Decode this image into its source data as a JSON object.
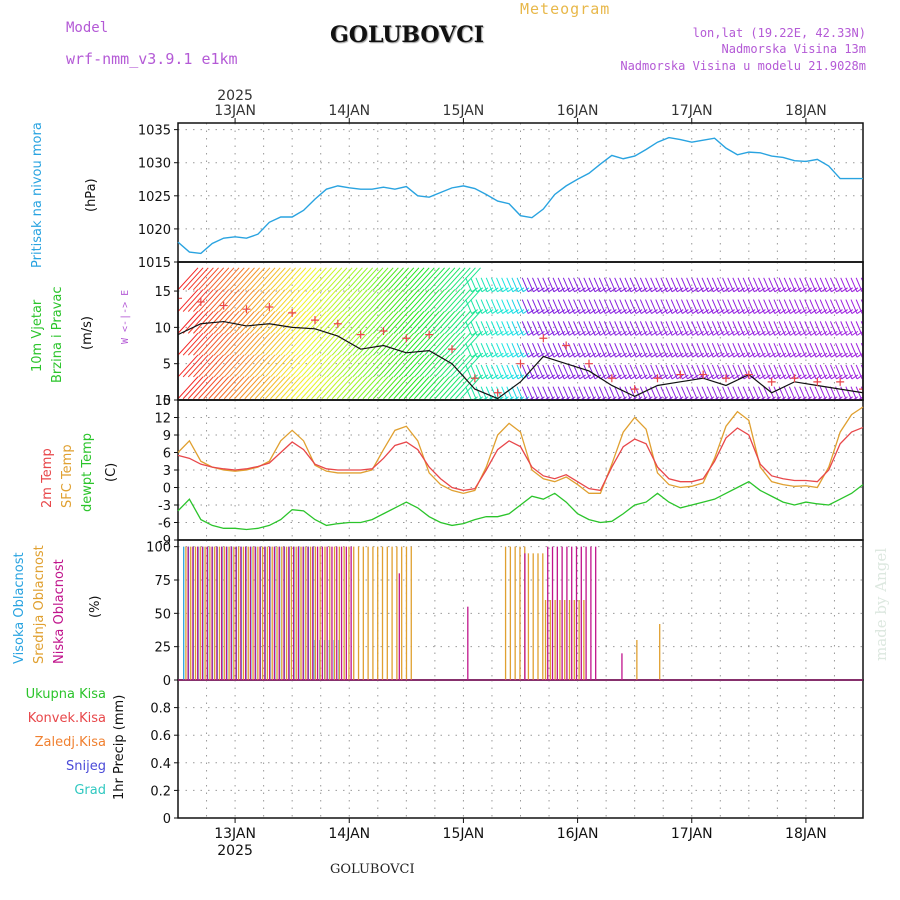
{
  "header": {
    "model_label": "Model",
    "model_name": "wrf-nmm_v3.9.1 e1km",
    "station": "GOLUBOVCI",
    "app_title": "Meteogram",
    "coords": "lon,lat (19.22E, 42.33N)",
    "altitude": "Nadmorska Visina 13m",
    "altitude_model": "Nadmorska Visina u modelu 21.9028m",
    "year": "2025",
    "bottom_station": "GOLUBOVCI",
    "watermark": "made by Angel"
  },
  "colors": {
    "pressure": "#29a3e0",
    "temp2m": "#e8474a",
    "sfc": "#e0a030",
    "dewpt": "#2bc42b",
    "high_cloud": "#29a3e0",
    "mid_cloud": "#e0a030",
    "low_cloud": "#c0148c",
    "label_purple": "#b45ad6"
  },
  "chart_data": [
    {
      "type": "line",
      "name": "pressure",
      "ylabel_text": "Pritisak na nivou mora",
      "unit": "(hPa)",
      "ylim": [
        1015,
        1036
      ],
      "yticks": [
        1015,
        1020,
        1025,
        1030,
        1035
      ],
      "x_days": [
        12.5,
        13,
        14,
        15,
        16,
        17,
        18,
        18.5
      ],
      "x_tick_labels": [
        "13JAN",
        "14JAN",
        "15JAN",
        "16JAN",
        "17JAN",
        "18JAN"
      ],
      "x_tick_days": [
        13,
        14,
        15,
        16,
        17,
        18
      ],
      "x": [
        12.5,
        12.6,
        12.7,
        12.8,
        12.9,
        13.0,
        13.1,
        13.2,
        13.3,
        13.4,
        13.5,
        13.6,
        13.7,
        13.8,
        13.9,
        14.0,
        14.1,
        14.2,
        14.3,
        14.4,
        14.5,
        14.6,
        14.7,
        14.8,
        14.9,
        15.0,
        15.1,
        15.2,
        15.3,
        15.4,
        15.5,
        15.6,
        15.7,
        15.8,
        15.9,
        16.0,
        16.1,
        16.2,
        16.3,
        16.4,
        16.5,
        16.6,
        16.7,
        16.8,
        16.9,
        17.0,
        17.1,
        17.2,
        17.3,
        17.4,
        17.5,
        17.6,
        17.7,
        17.8,
        17.9,
        18.0,
        18.1,
        18.2,
        18.3,
        18.4,
        18.5
      ],
      "y": [
        1018.0,
        1016.5,
        1016.3,
        1017.8,
        1018.6,
        1018.8,
        1018.6,
        1019.2,
        1021.0,
        1021.8,
        1021.8,
        1022.8,
        1024.5,
        1026.0,
        1026.5,
        1026.2,
        1026.0,
        1026.0,
        1026.3,
        1026.0,
        1026.4,
        1025.0,
        1024.8,
        1025.5,
        1026.2,
        1026.5,
        1026.1,
        1025.2,
        1024.2,
        1023.8,
        1022.0,
        1021.7,
        1023.0,
        1025.2,
        1026.5,
        1027.5,
        1028.4,
        1029.8,
        1031.1,
        1030.6,
        1031.0,
        1032.0,
        1033.1,
        1033.8,
        1033.5,
        1033.1,
        1033.4,
        1033.7,
        1032.2,
        1031.2,
        1031.6,
        1031.5,
        1031.0,
        1030.8,
        1030.3,
        1030.2,
        1030.5,
        1029.5,
        1027.6,
        1027.6,
        1027.6
      ]
    },
    {
      "type": "barbs",
      "name": "wind",
      "ylabel_text": "10m Vjetar",
      "ylabel_text2": "Brzina i Pravac",
      "unit": "(m/s)",
      "compass": "W <-|-> E",
      "ylim": [
        0,
        19
      ],
      "yticks": [
        0,
        5,
        10,
        15
      ],
      "x": [
        12.5,
        12.7,
        12.9,
        13.1,
        13.3,
        13.5,
        13.7,
        13.9,
        14.1,
        14.3,
        14.5,
        14.7,
        14.9,
        15.1,
        15.3,
        15.5,
        15.7,
        15.9,
        16.1,
        16.3,
        16.5,
        16.7,
        16.9,
        17.1,
        17.3,
        17.5,
        17.7,
        17.9,
        18.1,
        18.3,
        18.5
      ],
      "speed": [
        9.0,
        10.5,
        10.8,
        10.2,
        10.5,
        10.0,
        9.8,
        8.8,
        7.0,
        7.5,
        6.5,
        6.8,
        5.0,
        1.5,
        0.2,
        2.5,
        6.0,
        5.0,
        4.0,
        2.0,
        0.5,
        2.0,
        2.5,
        3.0,
        2.0,
        3.5,
        1.0,
        2.5,
        2.0,
        1.5,
        1.0
      ],
      "gust": [
        14.0,
        13.5,
        13.0,
        12.5,
        12.8,
        12.0,
        11.0,
        10.5,
        9.0,
        9.5,
        8.5,
        9.0,
        7.0,
        3.0,
        1.0,
        5.0,
        8.5,
        7.5,
        5.0,
        3.0,
        1.5,
        3.0,
        3.5,
        3.5,
        3.0,
        3.5,
        2.5,
        3.0,
        2.5,
        2.5,
        1.5
      ]
    },
    {
      "type": "line",
      "name": "temperature",
      "ylabel_text": "2m Temp",
      "ylabel_text2": "SFC Temp",
      "ylabel_text3": "dewpt Temp",
      "unit": "(C)",
      "ylim": [
        -9,
        15
      ],
      "yticks": [
        -9,
        -6,
        -3,
        0,
        3,
        6,
        9,
        12,
        15
      ],
      "x": [
        12.5,
        12.6,
        12.7,
        12.8,
        12.9,
        13.0,
        13.1,
        13.2,
        13.3,
        13.4,
        13.5,
        13.6,
        13.7,
        13.8,
        13.9,
        14.0,
        14.1,
        14.2,
        14.3,
        14.4,
        14.5,
        14.6,
        14.7,
        14.8,
        14.9,
        15.0,
        15.1,
        15.2,
        15.3,
        15.4,
        15.5,
        15.6,
        15.7,
        15.8,
        15.9,
        16.0,
        16.1,
        16.2,
        16.3,
        16.4,
        16.5,
        16.6,
        16.7,
        16.8,
        16.9,
        17.0,
        17.1,
        17.2,
        17.3,
        17.4,
        17.5,
        17.6,
        17.7,
        17.8,
        17.9,
        18.0,
        18.1,
        18.2,
        18.3,
        18.4,
        18.5
      ],
      "series": [
        {
          "name": "2m Temp",
          "values": [
            5.5,
            5.0,
            4.0,
            3.5,
            3.2,
            3.0,
            3.2,
            3.6,
            4.2,
            6.0,
            7.8,
            6.5,
            4.0,
            3.2,
            3.0,
            3.0,
            3.0,
            3.2,
            5.0,
            7.2,
            7.8,
            6.5,
            3.5,
            1.5,
            0.0,
            -0.5,
            -0.2,
            3.0,
            6.5,
            8.0,
            7.0,
            3.5,
            2.0,
            1.5,
            2.2,
            1.0,
            -0.2,
            -0.5,
            3.5,
            7.0,
            8.3,
            7.5,
            3.5,
            1.5,
            1.0,
            1.0,
            1.5,
            4.5,
            8.5,
            10.2,
            9.0,
            4.0,
            2.0,
            1.5,
            1.2,
            1.2,
            1.0,
            3.0,
            7.5,
            9.5,
            10.3
          ]
        },
        {
          "name": "SFC Temp",
          "values": [
            6.0,
            8.0,
            4.5,
            3.5,
            3.0,
            2.8,
            3.0,
            3.5,
            4.5,
            8.0,
            9.8,
            8.0,
            3.8,
            2.8,
            2.5,
            2.5,
            2.5,
            3.0,
            6.5,
            9.8,
            10.5,
            8.0,
            2.5,
            0.5,
            -0.5,
            -1.0,
            -0.5,
            3.5,
            9.0,
            11.0,
            9.5,
            3.0,
            1.5,
            1.0,
            1.8,
            0.5,
            -1.0,
            -1.0,
            4.0,
            9.5,
            12.0,
            10.0,
            2.5,
            0.5,
            0.0,
            0.2,
            0.8,
            5.0,
            10.5,
            13.0,
            11.5,
            3.5,
            1.0,
            0.5,
            0.2,
            0.3,
            0.0,
            3.5,
            9.5,
            12.5,
            13.8
          ]
        },
        {
          "name": "dewpt Temp",
          "values": [
            -4.0,
            -2.0,
            -5.5,
            -6.5,
            -7.0,
            -7.0,
            -7.2,
            -7.0,
            -6.5,
            -5.5,
            -3.8,
            -4.0,
            -5.5,
            -6.5,
            -6.2,
            -6.0,
            -6.0,
            -5.5,
            -4.5,
            -3.5,
            -2.5,
            -3.5,
            -5.0,
            -6.0,
            -6.5,
            -6.2,
            -5.5,
            -5.0,
            -5.0,
            -4.5,
            -3.0,
            -1.5,
            -2.0,
            -1.0,
            -2.5,
            -4.5,
            -5.5,
            -6.0,
            -5.8,
            -4.5,
            -3.0,
            -2.5,
            -1.0,
            -2.5,
            -3.5,
            -3.0,
            -2.5,
            -2.0,
            -1.0,
            0.0,
            1.0,
            -0.5,
            -1.5,
            -2.5,
            -3.0,
            -2.5,
            -2.8,
            -3.0,
            -2.0,
            -1.0,
            0.5
          ]
        }
      ]
    },
    {
      "type": "bar",
      "name": "clouds",
      "ylabel_text": "Visoka Oblacnost",
      "ylabel_text2": "Srednja Oblacnost",
      "ylabel_text3": "Niska Oblacnost",
      "unit": "(%)",
      "ylim": [
        0,
        105
      ],
      "yticks": [
        0,
        25,
        50,
        75,
        100
      ],
      "series": [
        {
          "name": "Visoka Oblacnost",
          "ranges": [
            [
              12.55,
              13.7,
              100
            ],
            [
              13.7,
              13.95,
              30
            ]
          ]
        },
        {
          "name": "Srednja Oblacnost",
          "ranges": [
            [
              12.55,
              14.55,
              100
            ],
            [
              15.35,
              15.55,
              100
            ],
            [
              15.55,
              15.7,
              95
            ],
            [
              15.7,
              16.05,
              60
            ],
            [
              16.5,
              16.52,
              30
            ],
            [
              16.7,
              16.72,
              42
            ]
          ]
        },
        {
          "name": "Niska Oblacnost",
          "ranges": [
            [
              12.55,
              14.0,
              100
            ],
            [
              14.4,
              14.45,
              80
            ],
            [
              15.0,
              15.03,
              55
            ],
            [
              15.5,
              15.52,
              95
            ],
            [
              15.7,
              16.15,
              100
            ],
            [
              16.35,
              16.37,
              20
            ]
          ]
        }
      ]
    },
    {
      "type": "bar",
      "name": "precip",
      "ylabel_text": "1hr Precip (mm)",
      "ylim": [
        0,
        1.0
      ],
      "yticks": [
        0,
        0.2,
        0.4,
        0.6,
        0.8
      ],
      "legend": [
        "Ukupna Kisa",
        "Konvek.Kisa",
        "Zaledj.Kisa",
        "Snijeg",
        "Grad"
      ],
      "legend_colors": [
        "#2bc42b",
        "#e8474a",
        "#f08030",
        "#4a4ad8",
        "#30c8c0"
      ],
      "values": []
    }
  ]
}
